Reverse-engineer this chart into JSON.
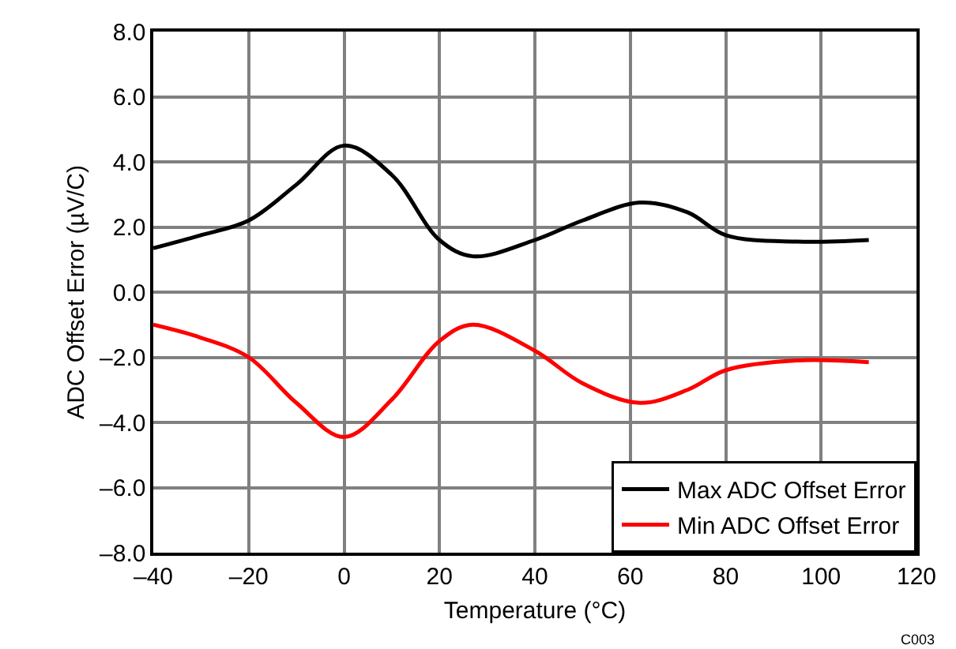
{
  "chart_data": {
    "type": "line",
    "xlabel": "Temperature (°C)",
    "ylabel": "ADC Offset Error (µV/C)",
    "x": [
      -40,
      -30,
      -20,
      -10,
      0,
      10,
      20,
      27,
      40,
      50,
      62,
      72,
      80,
      95,
      110
    ],
    "series": [
      {
        "name": "Max ADC Offset Error",
        "color": "#000000",
        "values": [
          1.35,
          1.75,
          2.2,
          3.3,
          4.5,
          3.6,
          1.6,
          1.1,
          1.6,
          2.2,
          2.75,
          2.45,
          1.75,
          1.55,
          1.6
        ]
      },
      {
        "name": "Min ADC Offset Error",
        "color": "#ff0000",
        "values": [
          -1.0,
          -1.4,
          -2.0,
          -3.4,
          -4.45,
          -3.3,
          -1.5,
          -1.0,
          -1.8,
          -2.8,
          -3.4,
          -3.0,
          -2.4,
          -2.1,
          -2.15
        ]
      }
    ],
    "xlim": [
      -40,
      120
    ],
    "xticks": [
      {
        "value": -40,
        "label": "–40"
      },
      {
        "value": -20,
        "label": "–20"
      },
      0,
      20,
      40,
      60,
      80,
      100,
      120
    ],
    "ylim": [
      -8,
      8
    ],
    "yticks": [
      {
        "value": -8,
        "label": "–8.0"
      },
      {
        "value": -6,
        "label": "–6.0"
      },
      {
        "value": -4,
        "label": "–4.0"
      },
      {
        "value": -2,
        "label": "–2.0"
      },
      {
        "value": 0,
        "label": "0.0"
      },
      {
        "value": 2,
        "label": "2.0"
      },
      {
        "value": 4,
        "label": "4.0"
      },
      {
        "value": 6,
        "label": "6.0"
      },
      {
        "value": 8,
        "label": "8.0"
      }
    ],
    "grid": true,
    "legend": "bottom right",
    "marker": "none",
    "line_style": "solid",
    "annotations": [
      "C003"
    ]
  }
}
